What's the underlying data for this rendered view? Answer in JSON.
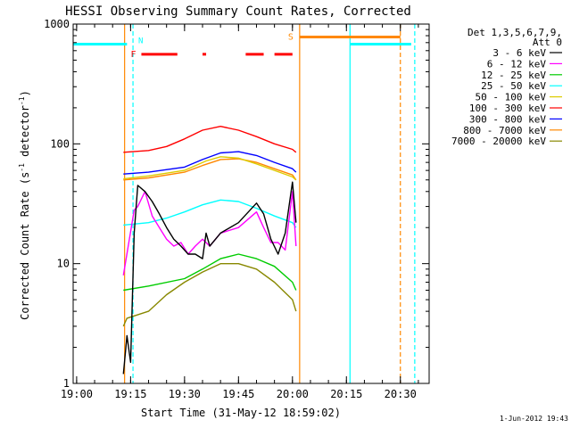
{
  "chart_data": {
    "type": "line",
    "title": "HESSI Observing Summary Count Rates, Corrected",
    "xlabel": "Start Time (31-May-12 18:59:02)",
    "ylabel_main": "Corrected Count Rate (s",
    "ylabel_sup1": "-1",
    "ylabel_mid": " detector",
    "ylabel_sup2": "-1",
    "ylabel_end": ")",
    "xlim": [
      "18:59:02",
      "20:38:00"
    ],
    "ylim": [
      1,
      1000
    ],
    "yscale": "log",
    "x_ticks": [
      "19:00",
      "19:15",
      "19:30",
      "19:45",
      "20:00",
      "20:15",
      "20:30"
    ],
    "y_ticks": [
      "1",
      "10",
      "100",
      "1000"
    ],
    "legend_header": "Det 1,3,5,6,7,9,",
    "legend_header2": "Att 0",
    "legend_position": "right",
    "timestamp": "1-Jun-2012 19:43",
    "colors": {
      "3-6": "#000000",
      "6-12": "#ff00ff",
      "12-25": "#00cc00",
      "25-50": "#00ffff",
      "50-100": "#ddcc00",
      "100-300": "#ff0000",
      "300-800": "#0000ff",
      "800-7000": "#ff8800",
      "7000-20000": "#888800",
      "orbit": "#00ffff",
      "saa": "#ff8800",
      "flare": "#ff0000"
    },
    "series": [
      {
        "name": "3 - 6 keV",
        "color_key": "3-6",
        "x": [
          "19:13",
          "19:14",
          "19:15",
          "19:16",
          "19:17",
          "19:19",
          "19:21",
          "19:23",
          "19:25",
          "19:27",
          "19:29",
          "19:31",
          "19:33",
          "19:35",
          "19:36",
          "19:37",
          "19:40",
          "19:45",
          "19:50",
          "19:52",
          "19:54",
          "19:56",
          "19:58",
          "20:00",
          "20:01"
        ],
        "values": [
          1.2,
          2.5,
          1.5,
          18,
          45,
          40,
          33,
          26,
          20,
          16,
          14,
          12,
          12,
          11,
          18,
          14,
          18,
          22,
          32,
          26,
          16,
          12,
          18,
          48,
          22
        ]
      },
      {
        "name": "6 - 12 keV",
        "color_key": "6-12",
        "x": [
          "19:13",
          "19:16",
          "19:17",
          "19:19",
          "19:21",
          "19:23",
          "19:25",
          "19:27",
          "19:29",
          "19:31",
          "19:33",
          "19:35",
          "19:37",
          "19:40",
          "19:45",
          "19:50",
          "19:52",
          "19:54",
          "19:56",
          "19:58",
          "20:00",
          "20:01"
        ],
        "values": [
          8,
          28,
          30,
          40,
          25,
          20,
          16,
          14,
          15,
          12,
          14,
          16,
          14,
          18,
          20,
          27,
          20,
          15,
          15,
          13,
          40,
          14
        ]
      },
      {
        "name": "12 - 25 keV",
        "color_key": "12-25",
        "x": [
          "19:13",
          "19:20",
          "19:30",
          "19:35",
          "19:40",
          "19:45",
          "19:50",
          "19:55",
          "20:00",
          "20:01"
        ],
        "values": [
          6,
          6.5,
          7.5,
          9,
          11,
          12,
          11,
          9.5,
          7,
          6
        ]
      },
      {
        "name": "25 - 50 keV",
        "color_key": "25-50",
        "x": [
          "19:13",
          "19:20",
          "19:25",
          "19:30",
          "19:35",
          "19:40",
          "19:45",
          "19:50",
          "19:55",
          "20:00",
          "20:01"
        ],
        "values": [
          21,
          22,
          24,
          27,
          31,
          34,
          33,
          29,
          25,
          22,
          20
        ]
      },
      {
        "name": "50 - 100 keV",
        "color_key": "50-100",
        "x": [
          "19:13",
          "19:20",
          "19:30",
          "19:36",
          "19:40",
          "19:45",
          "19:50",
          "19:55",
          "20:00",
          "20:01"
        ],
        "values": [
          51,
          54,
          60,
          72,
          78,
          76,
          68,
          60,
          53,
          50
        ]
      },
      {
        "name": "100 - 300 keV",
        "color_key": "100-300",
        "x": [
          "19:13",
          "19:20",
          "19:25",
          "19:30",
          "19:35",
          "19:40",
          "19:45",
          "19:50",
          "19:55",
          "20:00",
          "20:01"
        ],
        "values": [
          85,
          88,
          95,
          110,
          130,
          140,
          130,
          115,
          100,
          90,
          85
        ]
      },
      {
        "name": "300 - 800 keV",
        "color_key": "300-800",
        "x": [
          "19:13",
          "19:20",
          "19:30",
          "19:35",
          "19:40",
          "19:45",
          "19:50",
          "19:55",
          "20:00",
          "20:01"
        ],
        "values": [
          56,
          58,
          64,
          74,
          84,
          86,
          80,
          70,
          62,
          58
        ]
      },
      {
        "name": "800 - 7000 keV",
        "color_key": "800-7000",
        "x": [
          "19:13",
          "19:20",
          "19:30",
          "19:35",
          "19:40",
          "19:45",
          "19:50",
          "19:55",
          "20:00",
          "20:01"
        ],
        "values": [
          50,
          52,
          58,
          66,
          74,
          75,
          70,
          62,
          55,
          50
        ]
      },
      {
        "name": "7000 - 20000 keV",
        "color_key": "7000-20000",
        "x": [
          "19:13",
          "19:14",
          "19:20",
          "19:25",
          "19:30",
          "19:35",
          "19:40",
          "19:45",
          "19:50",
          "19:55",
          "20:00",
          "20:01"
        ],
        "values": [
          3,
          3.5,
          4,
          5.5,
          7,
          8.5,
          10,
          10,
          9,
          7,
          5,
          4
        ]
      }
    ],
    "orbit_bars": [
      {
        "x0": "18:59:02",
        "x1": "19:14:00",
        "y": 680,
        "label": "",
        "color_key": "orbit"
      },
      {
        "x0": "20:16:00",
        "x1": "20:33:00",
        "y": 680,
        "label": "",
        "color_key": "orbit"
      }
    ],
    "saa_bar": {
      "x0": "20:02:00",
      "x1": "20:30:00",
      "y": 780,
      "label": "S",
      "color_key": "saa"
    },
    "flare_dashes": [
      [
        "19:18",
        "19:28"
      ],
      [
        "19:35",
        "19:36"
      ],
      [
        "19:47",
        "19:52"
      ],
      [
        "19:55",
        "20:00"
      ]
    ],
    "flare_y": 560,
    "flare_label": "F",
    "night_label": "N",
    "vlines": [
      {
        "x": "19:13:20",
        "color_key": "saa",
        "style": "solid"
      },
      {
        "x": "19:15:40",
        "color_key": "orbit",
        "style": "dashed"
      },
      {
        "x": "20:02:00",
        "color_key": "saa",
        "style": "solid"
      },
      {
        "x": "20:16:00",
        "color_key": "orbit",
        "style": "solid"
      },
      {
        "x": "20:30:00",
        "color_key": "saa",
        "style": "dashed"
      },
      {
        "x": "20:34:00",
        "color_key": "orbit",
        "style": "dashed"
      }
    ]
  }
}
